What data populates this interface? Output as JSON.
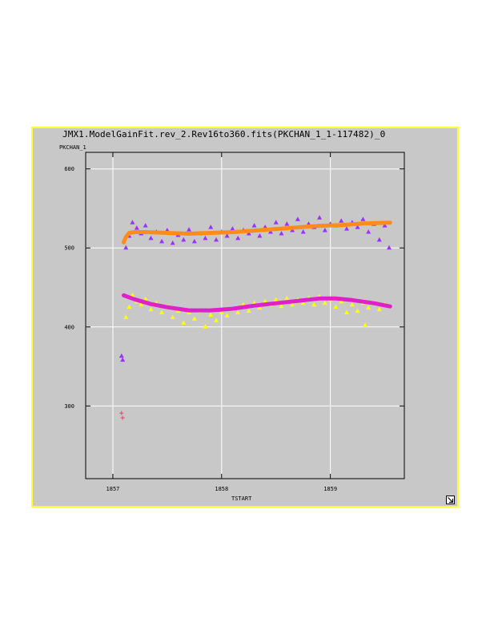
{
  "chart_data": {
    "type": "scatter",
    "title": "JMX1.ModelGainFit.rev_2.Rev16to360.fits(PKCHAN_1_1-117482)_0",
    "xlabel": "TSTART",
    "ylabel": "PKCHAN_1",
    "xlim": [
      1856.75,
      1859.68
    ],
    "ylim": [
      208,
      621
    ],
    "x_ticks": [
      1857,
      1858,
      1859
    ],
    "x_tick_labels": [
      "1857",
      "1858",
      "1859"
    ],
    "y_ticks": [
      300,
      400,
      500,
      600
    ],
    "y_tick_labels": [
      "300",
      "400",
      "500",
      "600"
    ],
    "grid": true,
    "legend": "none",
    "series": [
      {
        "marker": "triangle",
        "color": "#9b30ff",
        "points": [
          [
            1857.08,
            363
          ],
          [
            1857.09,
            358
          ],
          [
            1857.12,
            500
          ],
          [
            1857.15,
            515
          ],
          [
            1857.18,
            532
          ],
          [
            1857.22,
            525
          ],
          [
            1857.26,
            518
          ],
          [
            1857.3,
            528
          ],
          [
            1857.35,
            512
          ],
          [
            1857.4,
            520
          ],
          [
            1857.45,
            508
          ],
          [
            1857.5,
            522
          ],
          [
            1857.55,
            506
          ],
          [
            1857.6,
            516
          ],
          [
            1857.65,
            510
          ],
          [
            1857.7,
            523
          ],
          [
            1857.75,
            508
          ],
          [
            1857.8,
            518
          ],
          [
            1857.85,
            512
          ],
          [
            1857.9,
            526
          ],
          [
            1857.95,
            510
          ],
          [
            1858.0,
            520
          ],
          [
            1858.05,
            515
          ],
          [
            1858.1,
            524
          ],
          [
            1858.15,
            512
          ],
          [
            1858.2,
            522
          ],
          [
            1858.25,
            518
          ],
          [
            1858.3,
            528
          ],
          [
            1858.35,
            515
          ],
          [
            1858.4,
            526
          ],
          [
            1858.45,
            520
          ],
          [
            1858.5,
            532
          ],
          [
            1858.55,
            518
          ],
          [
            1858.6,
            530
          ],
          [
            1858.65,
            522
          ],
          [
            1858.7,
            536
          ],
          [
            1858.75,
            520
          ],
          [
            1858.8,
            530
          ],
          [
            1858.85,
            526
          ],
          [
            1858.9,
            538
          ],
          [
            1858.95,
            522
          ],
          [
            1859.0,
            530
          ],
          [
            1859.05,
            528
          ],
          [
            1859.1,
            534
          ],
          [
            1859.15,
            524
          ],
          [
            1859.2,
            532
          ],
          [
            1859.25,
            526
          ],
          [
            1859.3,
            536
          ],
          [
            1859.35,
            520
          ],
          [
            1859.4,
            530
          ],
          [
            1859.45,
            510
          ],
          [
            1859.5,
            528
          ],
          [
            1859.54,
            500
          ]
        ]
      },
      {
        "marker": "triangle",
        "color": "#ffff00",
        "points": [
          [
            1857.12,
            412
          ],
          [
            1857.15,
            425
          ],
          [
            1857.18,
            440
          ],
          [
            1857.22,
            432
          ],
          [
            1857.26,
            428
          ],
          [
            1857.3,
            435
          ],
          [
            1857.35,
            422
          ],
          [
            1857.4,
            430
          ],
          [
            1857.45,
            418
          ],
          [
            1857.5,
            425
          ],
          [
            1857.55,
            412
          ],
          [
            1857.6,
            420
          ],
          [
            1857.65,
            405
          ],
          [
            1857.7,
            418
          ],
          [
            1857.75,
            410
          ],
          [
            1857.8,
            420
          ],
          [
            1857.85,
            400
          ],
          [
            1857.9,
            415
          ],
          [
            1857.95,
            408
          ],
          [
            1858.0,
            418
          ],
          [
            1858.05,
            414
          ],
          [
            1858.1,
            422
          ],
          [
            1858.15,
            418
          ],
          [
            1858.2,
            428
          ],
          [
            1858.25,
            420
          ],
          [
            1858.3,
            430
          ],
          [
            1858.35,
            424
          ],
          [
            1858.4,
            432
          ],
          [
            1858.45,
            428
          ],
          [
            1858.5,
            434
          ],
          [
            1858.55,
            426
          ],
          [
            1858.6,
            436
          ],
          [
            1858.65,
            428
          ],
          [
            1858.7,
            434
          ],
          [
            1858.75,
            430
          ],
          [
            1858.8,
            436
          ],
          [
            1858.85,
            428
          ],
          [
            1858.9,
            438
          ],
          [
            1858.95,
            430
          ],
          [
            1859.0,
            434
          ],
          [
            1859.05,
            425
          ],
          [
            1859.1,
            432
          ],
          [
            1859.15,
            418
          ],
          [
            1859.2,
            428
          ],
          [
            1859.25,
            420
          ],
          [
            1859.3,
            430
          ],
          [
            1859.35,
            424
          ],
          [
            1859.4,
            430
          ],
          [
            1859.45,
            422
          ],
          [
            1859.5,
            428
          ],
          [
            1859.32,
            402
          ]
        ]
      },
      {
        "marker": "plus",
        "color": "#ff3366",
        "points": [
          [
            1857.08,
            291
          ],
          [
            1857.09,
            285
          ]
        ]
      },
      {
        "marker": "line",
        "color": "#ff8c1a",
        "points": [
          [
            1857.1,
            507
          ],
          [
            1857.12,
            514
          ],
          [
            1857.15,
            519
          ],
          [
            1857.2,
            520
          ],
          [
            1857.3,
            520
          ],
          [
            1857.5,
            519
          ],
          [
            1857.7,
            518
          ],
          [
            1857.9,
            519
          ],
          [
            1858.1,
            520
          ],
          [
            1858.3,
            522
          ],
          [
            1858.5,
            524
          ],
          [
            1858.7,
            526
          ],
          [
            1858.9,
            528
          ],
          [
            1859.1,
            529
          ],
          [
            1859.3,
            531
          ],
          [
            1859.55,
            532
          ]
        ]
      },
      {
        "marker": "line",
        "color": "#e020c8",
        "points": [
          [
            1857.1,
            440
          ],
          [
            1857.2,
            435
          ],
          [
            1857.35,
            429
          ],
          [
            1857.5,
            425
          ],
          [
            1857.7,
            421
          ],
          [
            1857.9,
            421
          ],
          [
            1858.1,
            423
          ],
          [
            1858.3,
            427
          ],
          [
            1858.5,
            430
          ],
          [
            1858.7,
            433
          ],
          [
            1858.9,
            436
          ],
          [
            1859.05,
            436
          ],
          [
            1859.2,
            434
          ],
          [
            1859.4,
            430
          ],
          [
            1859.55,
            426
          ]
        ]
      }
    ]
  },
  "window": {
    "border_color": "#ffff33",
    "background": "#c8c8c8",
    "resize_icon": "resize-arrow-icon"
  }
}
